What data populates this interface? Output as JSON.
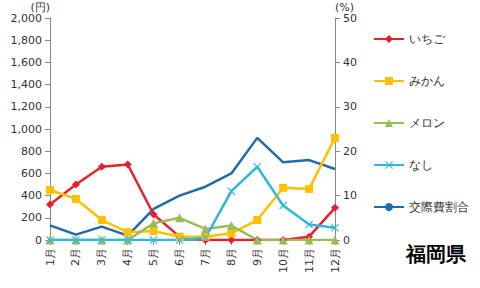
{
  "chart_data": {
    "type": "line",
    "categories": [
      "1月",
      "2月",
      "3月",
      "4月",
      "5月",
      "6月",
      "7月",
      "8月",
      "9月",
      "10月",
      "11月",
      "12月"
    ],
    "series": [
      {
        "name": "いちご",
        "color": "#e8202a",
        "marker": "diamond",
        "values": [
          320,
          500,
          660,
          680,
          230,
          30,
          0,
          0,
          0,
          0,
          30,
          290
        ]
      },
      {
        "name": "みかん",
        "color": "#ffc000",
        "marker": "square",
        "values": [
          450,
          370,
          180,
          70,
          80,
          30,
          30,
          60,
          180,
          470,
          460,
          920
        ]
      },
      {
        "name": "メロン",
        "color": "#9bbb59",
        "marker": "triangle",
        "values": [
          0,
          0,
          0,
          0,
          150,
          200,
          100,
          130,
          0,
          0,
          0,
          0
        ]
      },
      {
        "name": "なし",
        "color": "#2eb7e0",
        "marker": "x",
        "values": [
          0,
          0,
          0,
          0,
          0,
          0,
          20,
          440,
          660,
          310,
          140,
          110
        ]
      },
      {
        "name": "交際費割合",
        "color": "#1f6bad",
        "marker": "none",
        "axis": "y2",
        "values": [
          3.3,
          1.2,
          3,
          1,
          7,
          10,
          12,
          15,
          23,
          17.5,
          18,
          16
        ]
      }
    ],
    "ylabel": "(円)",
    "y2label": "(%)",
    "ylim": [
      0,
      2000
    ],
    "yticks": [
      0,
      200,
      400,
      600,
      800,
      1000,
      1200,
      1400,
      1600,
      1800,
      2000
    ],
    "y2lim": [
      0,
      50
    ],
    "y2ticks": [
      0,
      10,
      20,
      30,
      40,
      50
    ],
    "grid": false,
    "legend": "right",
    "annotations": [
      "福岡県"
    ]
  }
}
